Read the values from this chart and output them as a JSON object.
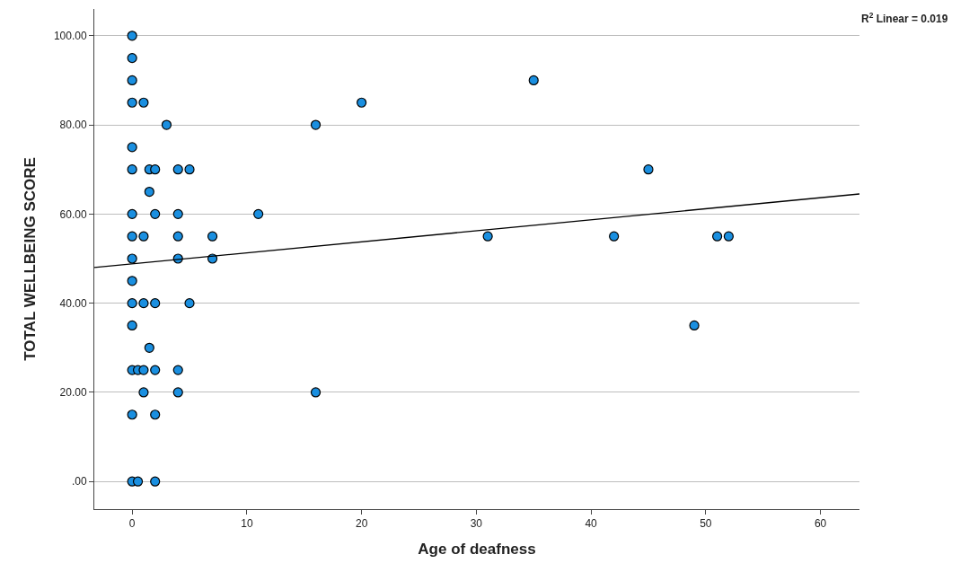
{
  "chart_data": {
    "type": "scatter",
    "xlabel": "Age of deafness",
    "ylabel": "TOTAL WELLBEING SCORE",
    "xlim": [
      -3.3,
      63.4
    ],
    "ylim": [
      -6.2,
      106
    ],
    "xticks": [
      0,
      10,
      20,
      30,
      40,
      50,
      60
    ],
    "yticks": [
      {
        "value": 0,
        "label": ".00"
      },
      {
        "value": 20,
        "label": "20.00"
      },
      {
        "value": 40,
        "label": "40.00"
      },
      {
        "value": 60,
        "label": "60.00"
      },
      {
        "value": 80,
        "label": "80.00"
      },
      {
        "value": 100,
        "label": "100.00"
      }
    ],
    "grid": "y",
    "marker": "circle",
    "annotations": [
      "R$^{2}$ Linear = 0.019"
    ],
    "series": [
      {
        "color": "#1a8fe0",
        "x": [
          0,
          0,
          0,
          0,
          1,
          3,
          0,
          0,
          1.5,
          2,
          4,
          5,
          1.5,
          0,
          2,
          4,
          11,
          0,
          1,
          4,
          7,
          0,
          4,
          7,
          0,
          0,
          1,
          2,
          5,
          0,
          1.5,
          0,
          0.5,
          1,
          2,
          4,
          1,
          4,
          0,
          2,
          0,
          0.5,
          2,
          16,
          20,
          35,
          45,
          31,
          42,
          51,
          52,
          49,
          16
        ],
        "values": [
          100,
          95,
          90,
          85,
          85,
          80,
          75,
          70,
          70,
          70,
          70,
          70,
          65,
          60,
          60,
          60,
          60,
          55,
          55,
          55,
          55,
          50,
          50,
          50,
          45,
          40,
          40,
          40,
          40,
          35,
          30,
          25,
          25,
          25,
          25,
          25,
          20,
          20,
          15,
          15,
          0,
          0,
          0,
          80,
          85,
          90,
          70,
          55,
          55,
          55,
          55,
          35,
          20
        ]
      },
      {
        "type": "line",
        "marker": "none",
        "color": "#000000",
        "x": [
          -3.3,
          63.4
        ],
        "values": [
          48,
          64.5
        ]
      }
    ]
  }
}
